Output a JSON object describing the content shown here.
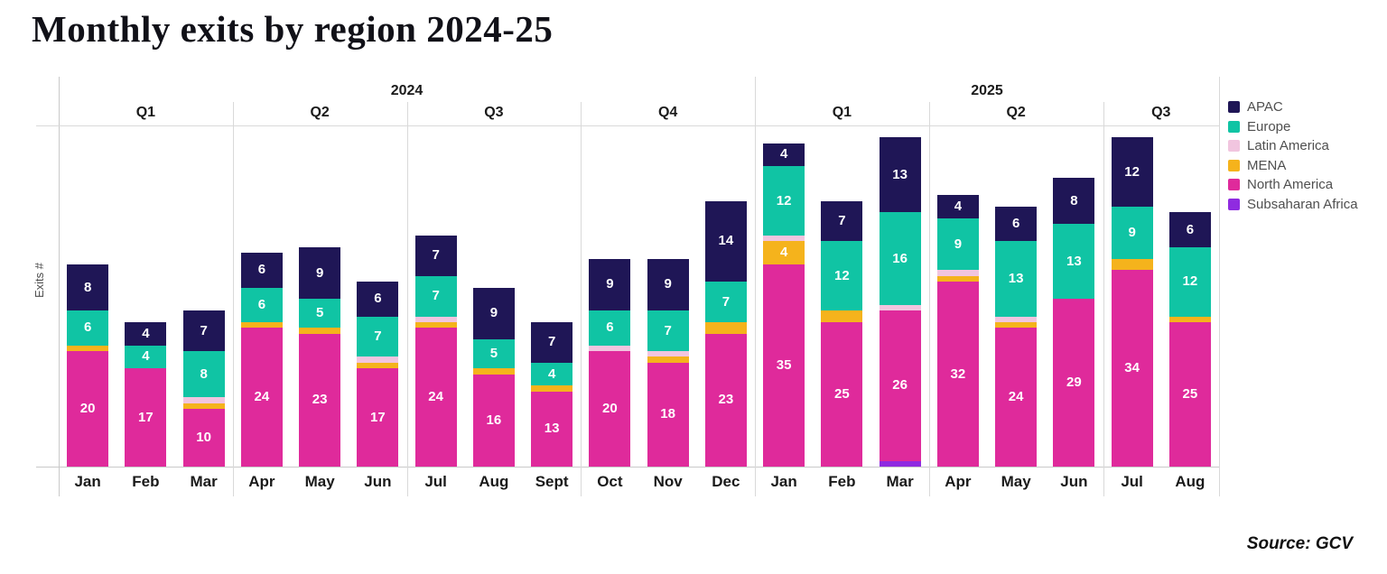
{
  "title": "Monthly exits by region 2024-25",
  "y_axis_label": "Exits #",
  "source": "Source: GCV",
  "legend": [
    {
      "label": "APAC",
      "color": "#1f1656"
    },
    {
      "label": "Europe",
      "color": "#10c4a4"
    },
    {
      "label": "Latin America",
      "color": "#f1c5df"
    },
    {
      "label": "MENA",
      "color": "#f5b31c"
    },
    {
      "label": "North America",
      "color": "#df2a9b"
    },
    {
      "label": "Subsaharan Africa",
      "color": "#8f2be0"
    }
  ],
  "chart_data": {
    "type": "bar",
    "stacked": true,
    "title": "Monthly exits by region 2024-25",
    "ylabel": "Exits #",
    "grid": false,
    "legend_position": "right",
    "label_min_value": 4,
    "years": [
      {
        "label": "2024",
        "quarters": [
          {
            "label": "Q1",
            "months": [
              "Jan",
              "Feb",
              "Mar"
            ]
          },
          {
            "label": "Q2",
            "months": [
              "Apr",
              "May",
              "Jun"
            ]
          },
          {
            "label": "Q3",
            "months": [
              "Jul",
              "Aug",
              "Sept"
            ]
          },
          {
            "label": "Q4",
            "months": [
              "Oct",
              "Nov",
              "Dec"
            ]
          }
        ]
      },
      {
        "label": "2025",
        "quarters": [
          {
            "label": "Q1",
            "months": [
              "Jan",
              "Feb",
              "Mar"
            ]
          },
          {
            "label": "Q2",
            "months": [
              "Apr",
              "May",
              "Jun"
            ]
          },
          {
            "label": "Q3",
            "months": [
              "Jul",
              "Aug"
            ]
          }
        ]
      }
    ],
    "categories": [
      "Jan",
      "Feb",
      "Mar",
      "Apr",
      "May",
      "Jun",
      "Jul",
      "Aug",
      "Sept",
      "Oct",
      "Nov",
      "Dec",
      "Jan",
      "Feb",
      "Mar",
      "Apr",
      "May",
      "Jun",
      "Jul",
      "Aug"
    ],
    "series": [
      {
        "name": "Subsaharan Africa",
        "color": "#8f2be0",
        "values": [
          0,
          0,
          0,
          0,
          0,
          0,
          0,
          0,
          0,
          0,
          0,
          0,
          0,
          0,
          1,
          0,
          0,
          0,
          0,
          0
        ]
      },
      {
        "name": "North America",
        "color": "#df2a9b",
        "values": [
          20,
          17,
          10,
          24,
          23,
          17,
          24,
          16,
          13,
          20,
          18,
          23,
          35,
          25,
          26,
          32,
          24,
          29,
          34,
          25
        ]
      },
      {
        "name": "MENA",
        "color": "#f5b31c",
        "values": [
          1,
          0,
          1,
          1,
          1,
          1,
          1,
          1,
          1,
          0,
          1,
          2,
          4,
          2,
          0,
          1,
          1,
          0,
          2,
          1
        ]
      },
      {
        "name": "Latin America",
        "color": "#f1c5df",
        "values": [
          0,
          0,
          1,
          0,
          0,
          1,
          1,
          0,
          0,
          1,
          1,
          0,
          1,
          0,
          1,
          1,
          1,
          0,
          0,
          0
        ]
      },
      {
        "name": "Europe",
        "color": "#10c4a4",
        "values": [
          6,
          4,
          8,
          6,
          5,
          7,
          7,
          5,
          4,
          6,
          7,
          7,
          12,
          12,
          16,
          9,
          13,
          13,
          9,
          12
        ]
      },
      {
        "name": "APAC",
        "color": "#1f1656",
        "values": [
          8,
          4,
          7,
          6,
          9,
          6,
          7,
          9,
          7,
          9,
          9,
          14,
          4,
          7,
          13,
          4,
          6,
          8,
          12,
          6
        ]
      }
    ]
  }
}
